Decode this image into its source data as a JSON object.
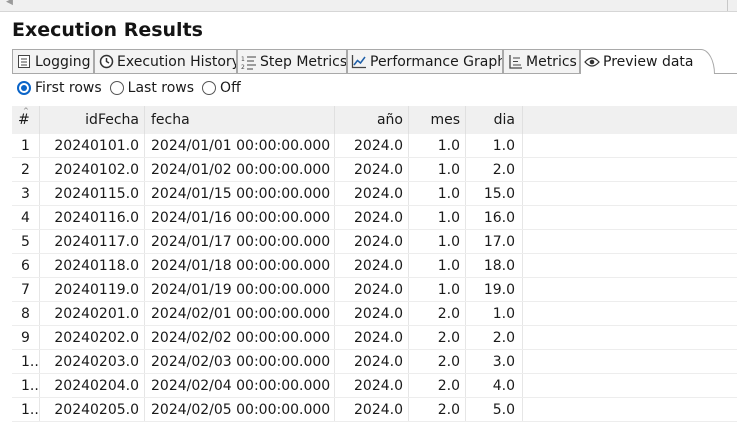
{
  "panel": {
    "title": "Execution Results"
  },
  "tabs": [
    {
      "label": "Logging",
      "icon": "log-icon"
    },
    {
      "label": "Execution History",
      "icon": "clock-icon"
    },
    {
      "label": "Step Metrics",
      "icon": "step-metrics-icon"
    },
    {
      "label": "Performance Graph",
      "icon": "graph-icon"
    },
    {
      "label": "Metrics",
      "icon": "metrics-icon"
    },
    {
      "label": "Preview data",
      "icon": "eye-icon",
      "active": true
    }
  ],
  "preview_mode": {
    "options": [
      "First rows",
      "Last rows",
      "Off"
    ],
    "selected": "First rows"
  },
  "table": {
    "columns": [
      "#",
      "idFecha",
      "fecha",
      "año",
      "mes",
      "dia"
    ],
    "rows": [
      [
        "1",
        "20240101.0",
        "2024/01/01 00:00:00.000",
        "2024.0",
        "1.0",
        "1.0"
      ],
      [
        "2",
        "20240102.0",
        "2024/01/02 00:00:00.000",
        "2024.0",
        "1.0",
        "2.0"
      ],
      [
        "3",
        "20240115.0",
        "2024/01/15 00:00:00.000",
        "2024.0",
        "1.0",
        "15.0"
      ],
      [
        "4",
        "20240116.0",
        "2024/01/16 00:00:00.000",
        "2024.0",
        "1.0",
        "16.0"
      ],
      [
        "5",
        "20240117.0",
        "2024/01/17 00:00:00.000",
        "2024.0",
        "1.0",
        "17.0"
      ],
      [
        "6",
        "20240118.0",
        "2024/01/18 00:00:00.000",
        "2024.0",
        "1.0",
        "18.0"
      ],
      [
        "7",
        "20240119.0",
        "2024/01/19 00:00:00.000",
        "2024.0",
        "1.0",
        "19.0"
      ],
      [
        "8",
        "20240201.0",
        "2024/02/01 00:00:00.000",
        "2024.0",
        "2.0",
        "1.0"
      ],
      [
        "9",
        "20240202.0",
        "2024/02/02 00:00:00.000",
        "2024.0",
        "2.0",
        "2.0"
      ],
      [
        "1..",
        "20240203.0",
        "2024/02/03 00:00:00.000",
        "2024.0",
        "2.0",
        "3.0"
      ],
      [
        "1..",
        "20240204.0",
        "2024/02/04 00:00:00.000",
        "2024.0",
        "2.0",
        "4.0"
      ],
      [
        "1..",
        "20240205.0",
        "2024/02/05 00:00:00.000",
        "2024.0",
        "2.0",
        "5.0"
      ]
    ]
  },
  "colors": {
    "accent": "#0a64c8",
    "header_bg": "#f0f0f0",
    "border": "#a9a9a9"
  }
}
